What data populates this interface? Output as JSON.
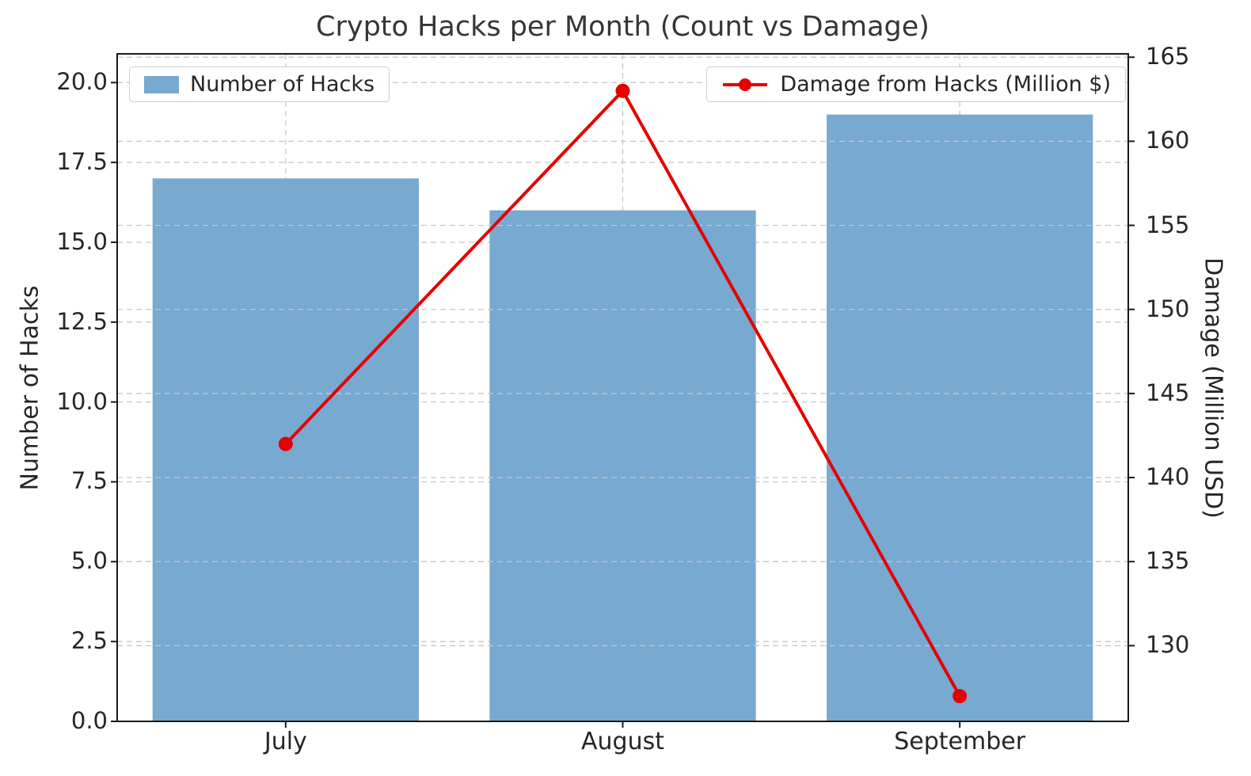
{
  "chart_data": {
    "type": "bar+line dual-axis combo",
    "title": "Crypto Hacks per Month (Count vs Damage)",
    "categories": [
      "July",
      "August",
      "September"
    ],
    "series": [
      {
        "name": "Number of Hacks",
        "type": "bar",
        "axis": "left",
        "color": "#78a9d1",
        "values": [
          17,
          16,
          19
        ]
      },
      {
        "name": "Damage from Hacks (Million $)",
        "type": "line",
        "axis": "right",
        "color": "#e60000",
        "marker": "circle",
        "values": [
          142,
          163,
          127
        ]
      }
    ],
    "left_axis": {
      "label": "Number of Hacks",
      "lim": [
        0,
        20.9
      ],
      "ticks": [
        0,
        2.5,
        5,
        7.5,
        10,
        12.5,
        15,
        17.5,
        20
      ],
      "tick_labels": [
        "0.0",
        "2.5",
        "5.0",
        "7.5",
        "10.0",
        "12.5",
        "15.0",
        "17.5",
        "20.0"
      ]
    },
    "right_axis": {
      "label": "Damage (Million USD)",
      "lim": [
        125.5,
        165.2
      ],
      "ticks": [
        130,
        135,
        140,
        145,
        150,
        155,
        160,
        165
      ],
      "tick_labels": [
        "130",
        "135",
        "140",
        "145",
        "150",
        "155",
        "160",
        "165"
      ]
    },
    "legend": {
      "positions": "upper-left (bars) and upper-right (line)"
    },
    "grid": {
      "visible": true,
      "style": "dashed",
      "color": "#c8c8c8"
    }
  }
}
